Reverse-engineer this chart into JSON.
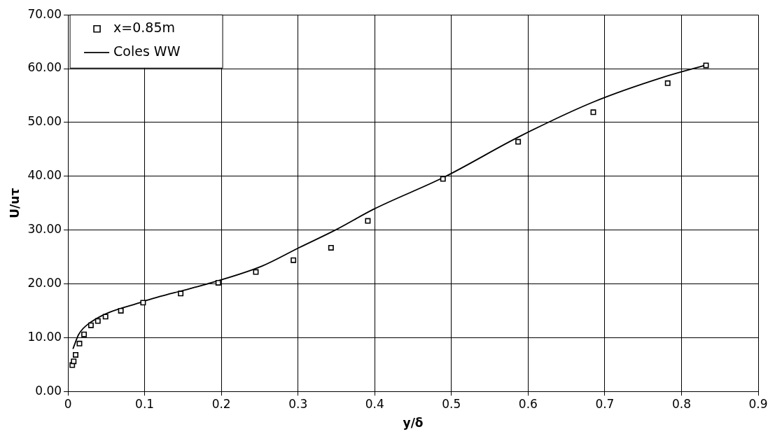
{
  "chart_data": {
    "type": "scatter",
    "xlabel": "y/δ",
    "ylabel": "U/uτ",
    "xlim": [
      0,
      0.9
    ],
    "xticks": [
      0,
      0.1,
      0.2,
      0.3,
      0.4,
      0.5,
      0.6,
      0.7,
      0.8,
      0.9
    ],
    "ylim": [
      0,
      70
    ],
    "yticks": [
      {
        "value": 0,
        "label": "0.00"
      },
      {
        "value": 10,
        "label": "10.00"
      },
      {
        "value": 20,
        "label": "20.00"
      },
      {
        "value": 30,
        "label": "30.00"
      },
      {
        "value": 40,
        "label": "40.00"
      },
      {
        "value": 50,
        "label": "50.00"
      },
      {
        "value": 60,
        "label": "60.00"
      },
      {
        "value": 70,
        "label": "70.00"
      }
    ],
    "grid": true,
    "legend": "top left",
    "series": [
      {
        "name": "x=0.85m",
        "type": "scatter",
        "marker": "square",
        "color": "#000000",
        "x": [
          0.0056,
          0.0075,
          0.01,
          0.015,
          0.021,
          0.03,
          0.039,
          0.049,
          0.069,
          0.098,
          0.147,
          0.196,
          0.245,
          0.294,
          0.343,
          0.391,
          0.489,
          0.587,
          0.685,
          0.782,
          0.832
        ],
        "values": [
          4.9,
          5.6,
          6.8,
          8.9,
          10.6,
          12.3,
          13.1,
          13.9,
          15.0,
          16.5,
          18.2,
          20.2,
          22.2,
          24.4,
          26.7,
          31.7,
          39.5,
          46.4,
          51.9,
          57.3,
          60.6
        ]
      },
      {
        "name": "Coles WW",
        "type": "line",
        "marker": "none",
        "line_style": "solid",
        "color": "#000000",
        "x": [
          0.0065,
          0.014,
          0.028,
          0.098,
          0.159,
          0.187,
          0.253,
          0.301,
          0.35,
          0.399,
          0.49,
          0.589,
          0.685,
          0.776,
          0.833
        ],
        "values": [
          7.9,
          10.6,
          12.7,
          16.7,
          19.1,
          20.2,
          23.3,
          26.7,
          30.1,
          33.9,
          39.8,
          47.4,
          53.8,
          58.4,
          60.7
        ]
      }
    ]
  }
}
